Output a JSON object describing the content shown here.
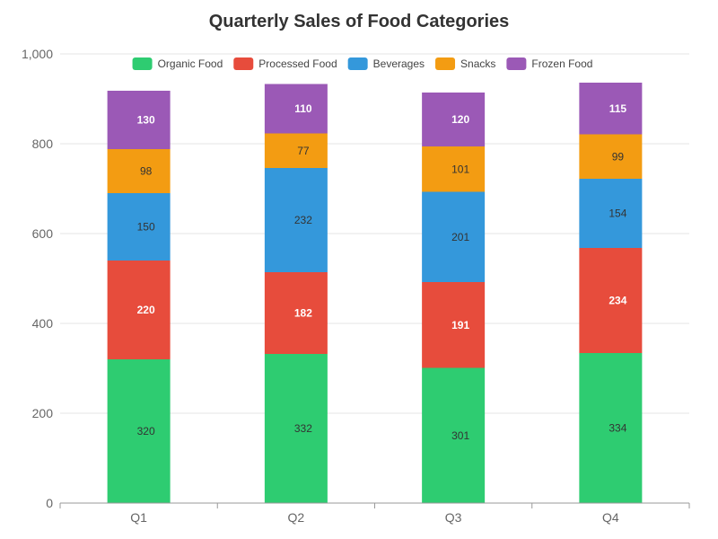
{
  "chart_data": {
    "type": "bar",
    "stacked": true,
    "title": "Quarterly Sales of Food Categories",
    "xlabel": "",
    "ylabel": "",
    "categories": [
      "Q1",
      "Q2",
      "Q3",
      "Q4"
    ],
    "ylim": [
      0,
      1000
    ],
    "yticks": [
      0,
      200,
      400,
      600,
      800,
      1000
    ],
    "ytick_labels": [
      "0",
      "200",
      "400",
      "600",
      "800",
      "1,000"
    ],
    "grid": true,
    "legend_position": "top",
    "series": [
      {
        "name": "Organic Food",
        "color": "#2ecc71",
        "label_color": "#333333",
        "values": [
          320,
          332,
          301,
          334
        ]
      },
      {
        "name": "Processed Food",
        "color": "#e74c3c",
        "label_color": "#ffffff",
        "values": [
          220,
          182,
          191,
          234
        ]
      },
      {
        "name": "Beverages",
        "color": "#3498db",
        "label_color": "#333333",
        "values": [
          150,
          232,
          201,
          154
        ]
      },
      {
        "name": "Snacks",
        "color": "#f39c12",
        "label_color": "#333333",
        "values": [
          98,
          77,
          101,
          99
        ]
      },
      {
        "name": "Frozen Food",
        "color": "#9b59b6",
        "label_color": "#ffffff",
        "values": [
          130,
          110,
          120,
          115
        ]
      }
    ]
  }
}
